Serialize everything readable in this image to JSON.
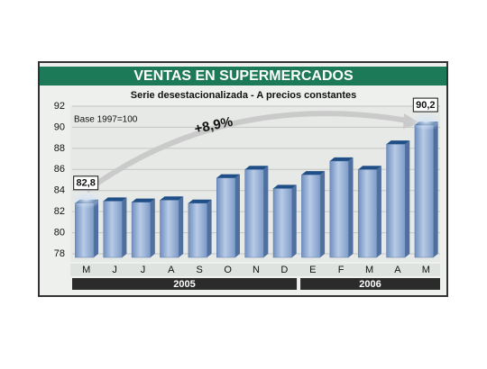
{
  "chart_data": {
    "type": "bar",
    "title": "VENTAS EN SUPERMERCADOS",
    "subtitle": "Serie desestacionalizada - A precios constantes",
    "annotations": [
      "Base 1997=100",
      "+8,9%"
    ],
    "categories": [
      "M",
      "J",
      "J",
      "A",
      "S",
      "O",
      "N",
      "D",
      "E",
      "F",
      "M",
      "A",
      "M"
    ],
    "groups": [
      "2005",
      "2006"
    ],
    "values": [
      82.8,
      83.0,
      82.9,
      83.1,
      82.8,
      85.2,
      86.0,
      84.2,
      85.5,
      86.8,
      86.0,
      88.4,
      90.2
    ],
    "value_labels": [
      "82,8",
      null,
      null,
      null,
      null,
      null,
      null,
      null,
      null,
      null,
      null,
      null,
      "90,2"
    ],
    "color": "#8aa8d0",
    "ylim": [
      78,
      92
    ],
    "yticks": [
      78,
      80,
      82,
      84,
      86,
      88,
      90,
      92
    ],
    "grid": true
  }
}
